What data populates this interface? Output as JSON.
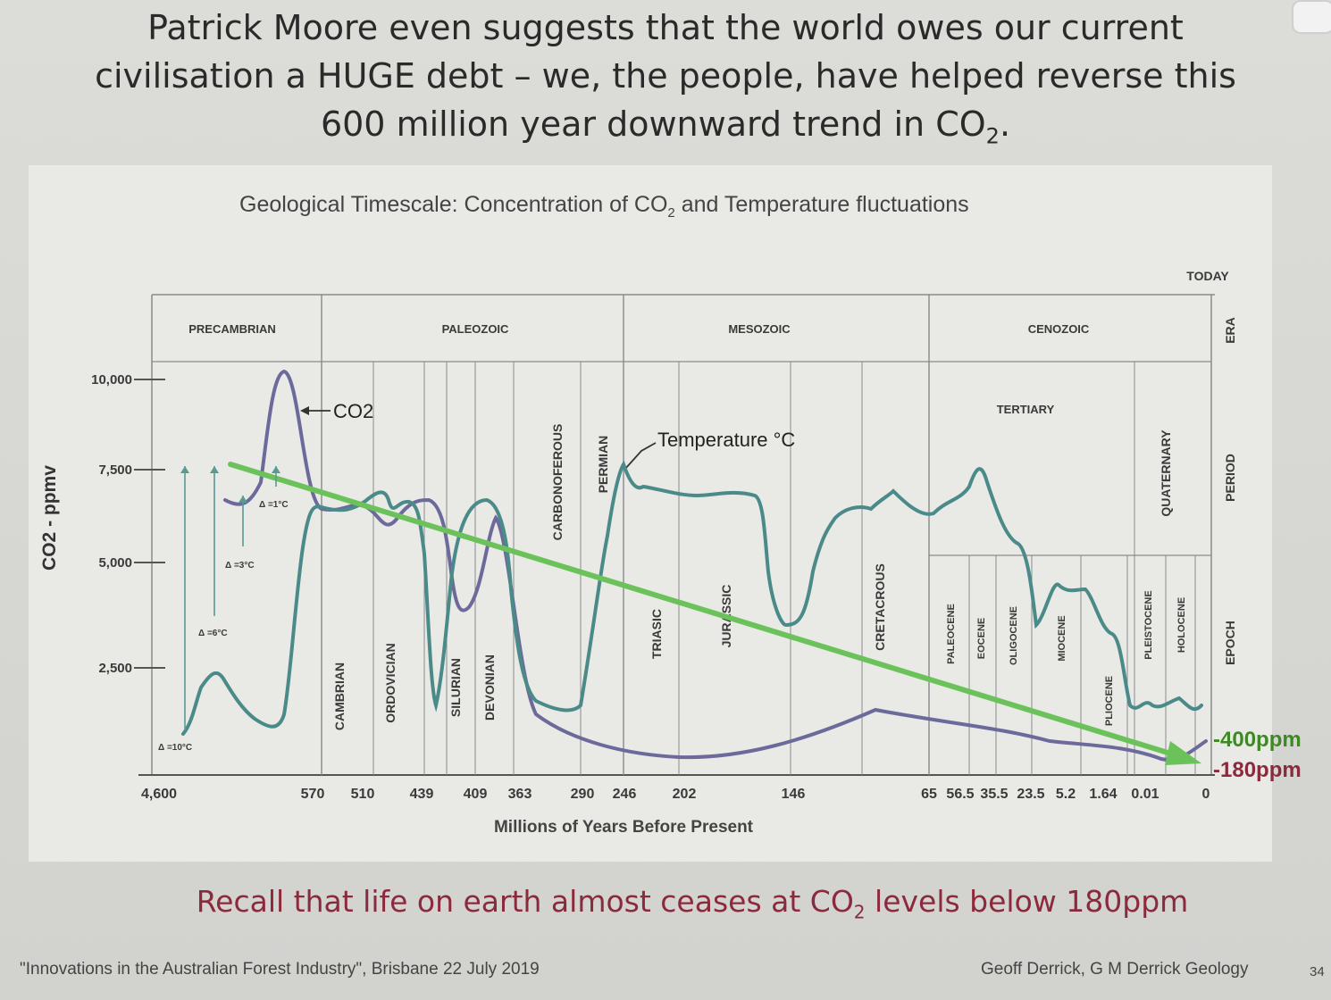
{
  "slide": {
    "headline_line1": "Patrick Moore even suggests that the world owes our current",
    "headline_line2": "civilisation a HUGE debt – we, the people, have helped reverse this",
    "headline_line3_pre": "600 million year downward trend in CO",
    "headline_line3_sub": "2",
    "headline_line3_post": ".",
    "recall_pre": "Recall that life on earth almost ceases at CO",
    "recall_sub": "2",
    "recall_post": " levels below 180ppm",
    "footer_left": "\"Innovations in the Australian Forest Industry\", Brisbane 22 July 2019",
    "footer_right": "Geoff Derrick, G M Derrick Geology",
    "page_number": "34"
  },
  "chart_data": {
    "type": "line",
    "title_pre": "Geological Timescale: Concentration of CO",
    "title_sub": "2",
    "title_post": " and Temperature fluctuations",
    "xlabel": "Millions of Years Before Present",
    "ylabel": "CO2 - ppmv",
    "today_label": "TODAY",
    "row_labels": {
      "era": "ERA",
      "period": "PERIOD",
      "epoch": "EPOCH"
    },
    "yticks": [
      "10,000",
      "7,500",
      "5,000",
      "2,500"
    ],
    "xticks": [
      "4,600",
      "570",
      "510",
      "439",
      "409",
      "363",
      "290",
      "246",
      "202",
      "146",
      "65",
      "56.5",
      "35.5",
      "23.5",
      "5.2",
      "1.64",
      "0.01",
      "0"
    ],
    "eras": [
      "PRECAMBRIAN",
      "PALEOZOIC",
      "MESOZOIC",
      "CENOZOIC"
    ],
    "tertiary_label": "TERTIARY",
    "periods": [
      "CAMBRIAN",
      "ORDOVICIAN",
      "SILURIAN",
      "DEVONIAN",
      "CARBONOFEROUS",
      "PERMIAN",
      "TRIASIC",
      "JURASSIC",
      "CRETACROUS",
      "QUATERNARY"
    ],
    "epochs": [
      "PALEOCENE",
      "EOCENE",
      "OLIGOCENE",
      "MIOCENE",
      "PLIOCENE",
      "PLEISTOCENE",
      "HOLOCENE"
    ],
    "annotations": {
      "co2": "CO2",
      "temperature": "Temperature °C",
      "delta_10": "Δ =10°C",
      "delta_6": "Δ =6°C",
      "delta_3": "Δ =3°C",
      "delta_1": "Δ =1°C"
    },
    "marker_labels": {
      "high": "-400ppm",
      "low": "-180ppm"
    },
    "series": [
      {
        "name": "CO2",
        "color": "#6c6a9a"
      },
      {
        "name": "Temperature °C",
        "color": "#4a8a88"
      },
      {
        "color": "#6cc25a"
      }
    ],
    "co2_series": [
      [
        0,
        9,
        6500
      ],
      [
        1,
        7.8,
        6800
      ],
      [
        2,
        7,
        6900
      ],
      [
        3,
        6.5,
        9700
      ],
      [
        4,
        6.3,
        10000
      ],
      [
        5,
        6.05,
        6600
      ],
      [
        6,
        5.9,
        6000
      ],
      [
        7,
        5.8,
        6300
      ],
      [
        8,
        5.65,
        5800
      ],
      [
        9,
        5.4,
        6200
      ],
      [
        10,
        5.2,
        5500
      ],
      [
        11,
        5.1,
        4200
      ],
      [
        12,
        4.95,
        5300
      ],
      [
        13,
        4.8,
        4000
      ],
      [
        14,
        4.55,
        1000
      ],
      [
        15,
        4.15,
        600
      ],
      [
        16,
        3.8,
        450
      ],
      [
        17,
        3.55,
        450
      ],
      [
        18,
        3.35,
        2400
      ],
      [
        19,
        3.2,
        1800
      ],
      [
        20,
        3.05,
        1200
      ],
      [
        21,
        2.95,
        1600
      ],
      [
        22,
        2.8,
        1100
      ],
      [
        23,
        2.65,
        1700
      ],
      [
        24,
        2.45,
        2000
      ],
      [
        25,
        2.3,
        1600
      ],
      [
        26,
        2.1,
        3400
      ],
      [
        27,
        1.9,
        3000
      ],
      [
        28,
        1.65,
        1500
      ],
      [
        29,
        1.4,
        1400
      ],
      [
        30,
        1.15,
        1000
      ],
      [
        31,
        0.85,
        700
      ],
      [
        32,
        0.5,
        400
      ],
      [
        33,
        0.25,
        200
      ],
      [
        34,
        0.05,
        200
      ],
      [
        35,
        0,
        400
      ]
    ],
    "temperature_series_note": "approximate trace"
  }
}
